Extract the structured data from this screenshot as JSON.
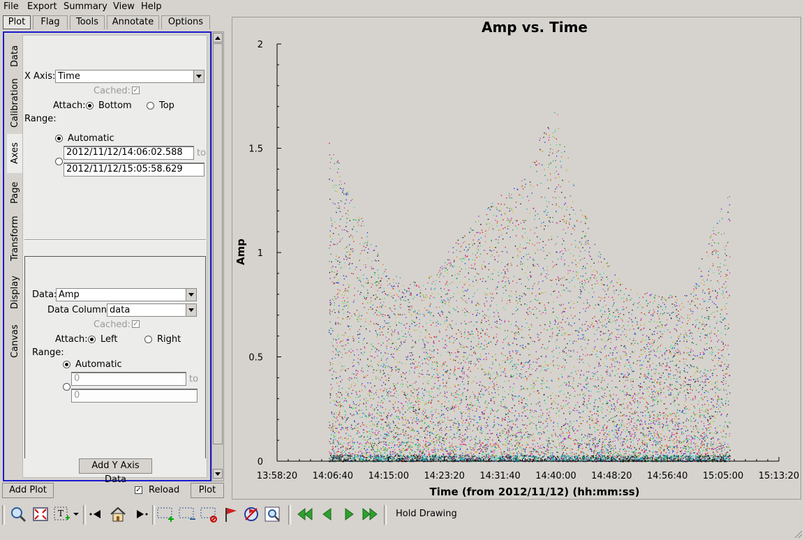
{
  "menubar": {
    "items": [
      "File",
      "Export",
      "Summary",
      "View",
      "Help"
    ]
  },
  "top_tabs": [
    "Plot",
    "Flag",
    "Tools",
    "Annotate",
    "Options"
  ],
  "vertical_tabs": [
    "Data",
    "Calibration",
    "Axes",
    "Page",
    "Transform",
    "Display",
    "Canvas"
  ],
  "x_axis": {
    "label": "X Axis:",
    "value": "Time",
    "cached_label": "Cached:",
    "attach_label": "Attach:",
    "attach_bottom": "Bottom",
    "attach_top": "Top",
    "range_label": "Range:",
    "automatic_label": "Automatic",
    "range_from": "2012/11/12/14:06:02.588",
    "range_to": "2012/11/12/15:05:58.629",
    "to_label": "to"
  },
  "y_axis": {
    "data_label": "Data:",
    "data_value": "Amp",
    "column_label": "Data Column:",
    "column_value": "data",
    "cached_label": "Cached:",
    "attach_label": "Attach:",
    "attach_left": "Left",
    "attach_right": "Right",
    "range_label": "Range:",
    "automatic_label": "Automatic",
    "range_from": "0",
    "range_to": "0",
    "to_label": "to",
    "add_button": "Add Y Axis Data"
  },
  "bottom_controls": {
    "add_plot": "Add Plot",
    "reload": "Reload",
    "plot": "Plot"
  },
  "toolbar": {
    "hold_drawing": "Hold Drawing",
    "icons": [
      "zoom-icon",
      "fullscreen-icon",
      "text-annotate-icon",
      "dropdown-icon",
      "back-icon",
      "home-icon",
      "forward-icon",
      "select-add-icon",
      "select-region-icon",
      "select-clear-icon",
      "flag-icon",
      "locate-icon",
      "inspect-icon",
      "first-icon",
      "prev-icon",
      "next-icon",
      "last-icon"
    ]
  },
  "chart_data": {
    "type": "scatter",
    "title": "Amp vs. Time",
    "xlabel": "Time (from 2012/11/12) (hh:mm:ss)",
    "ylabel": "Amp",
    "xticks": [
      "13:58:20",
      "14:06:40",
      "14:15:00",
      "14:23:20",
      "14:31:40",
      "14:40:00",
      "14:48:20",
      "14:56:40",
      "15:05:00",
      "15:13:20"
    ],
    "yticks": [
      "0",
      "0.5",
      "1",
      "1.5",
      "2"
    ],
    "ylim": [
      0,
      2
    ],
    "xlim": [
      "13:58:20",
      "15:13:20"
    ],
    "data_span": [
      "14:06:02",
      "15:05:58"
    ],
    "envelope": {
      "x": [
        "14:06:02",
        "14:10:00",
        "14:15:00",
        "14:20:00",
        "14:25:00",
        "14:30:00",
        "14:35:00",
        "14:37:30",
        "14:40:00",
        "14:43:00",
        "14:46:00",
        "14:50:00",
        "14:55:00",
        "15:00:00",
        "15:03:00",
        "15:05:58"
      ],
      "max_amp": [
        1.55,
        1.25,
        0.9,
        0.85,
        1.05,
        1.25,
        1.35,
        1.55,
        1.7,
        1.3,
        1.05,
        0.85,
        0.8,
        0.8,
        1.1,
        1.3
      ]
    },
    "colors": [
      "#e02020",
      "#2040e0",
      "#20a040",
      "#e08020",
      "#a020c0",
      "#20b0c0",
      "#202020",
      "#c0c020",
      "#e040a0",
      "#40e080"
    ],
    "grid": false
  }
}
